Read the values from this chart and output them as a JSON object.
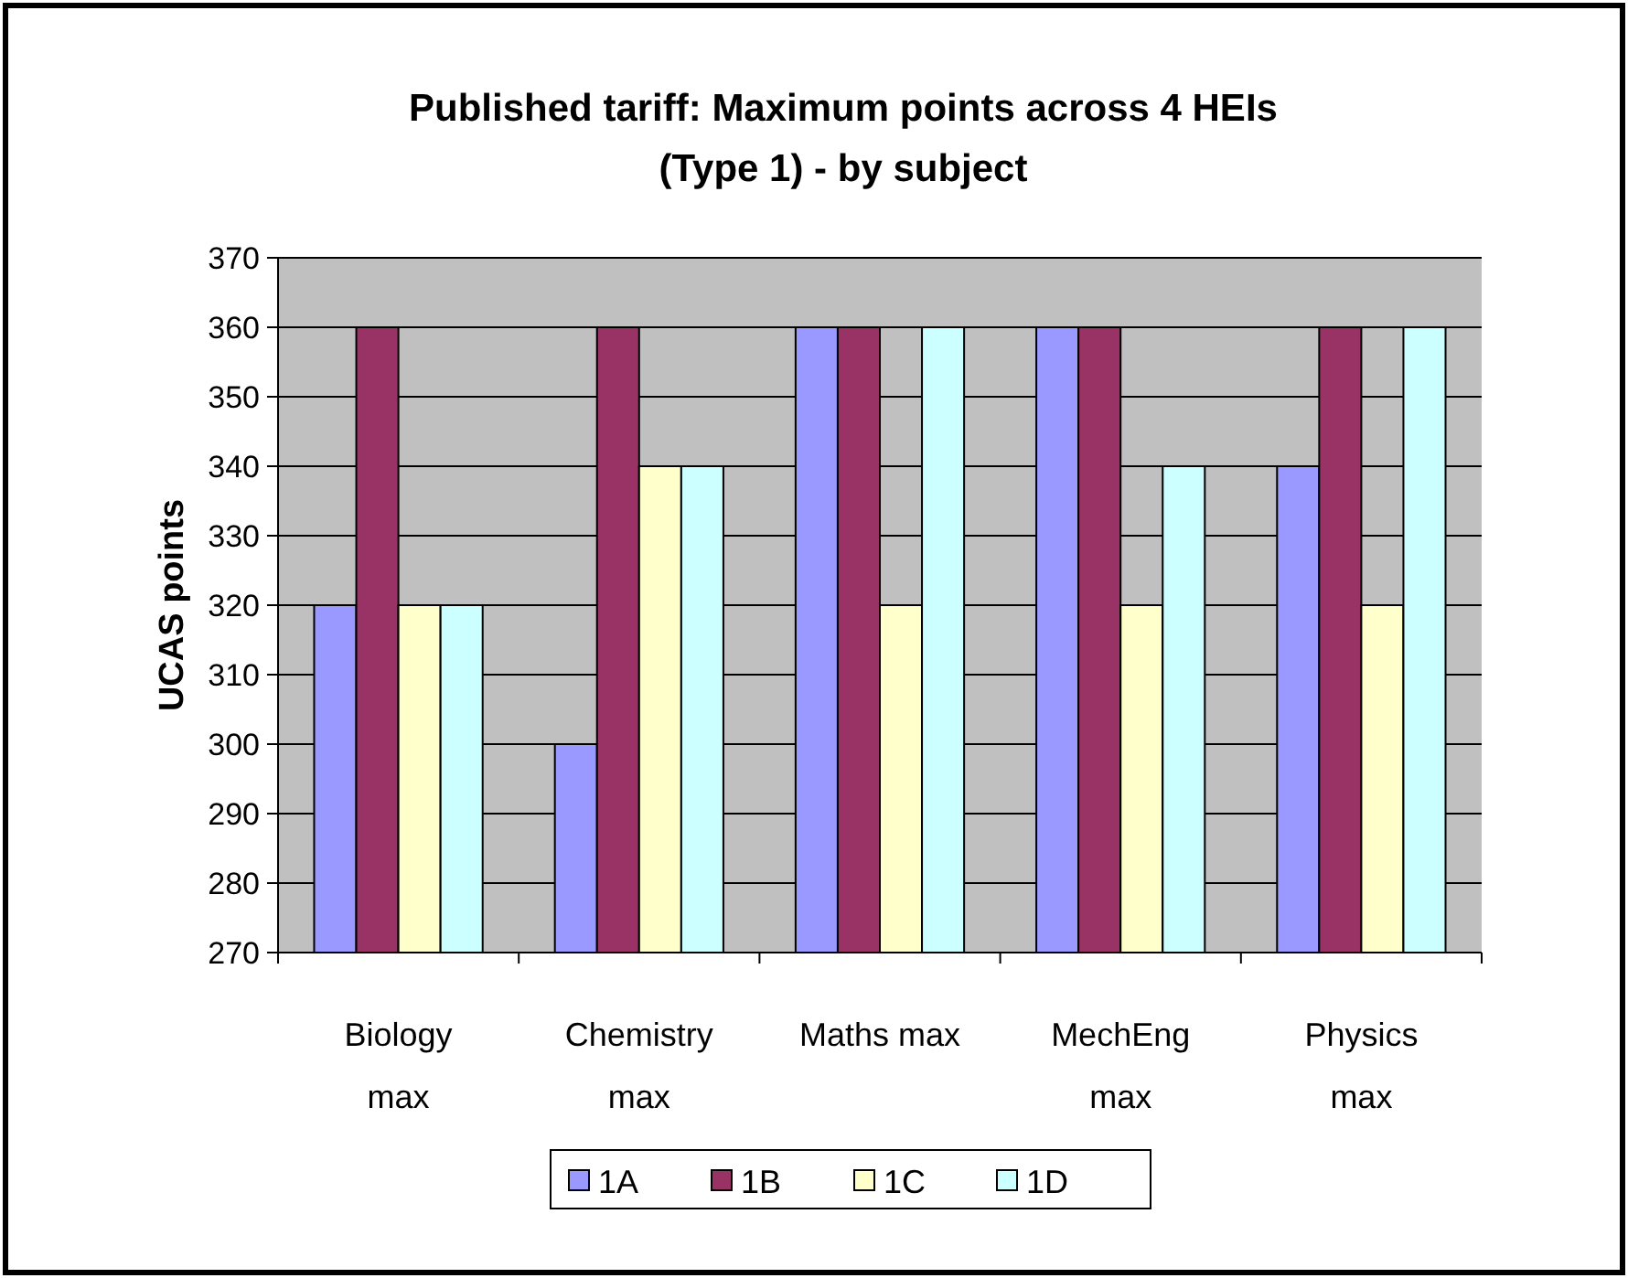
{
  "chart_data": {
    "type": "bar",
    "title": "Published tariff: Maximum points across 4 HEIs\n(Type 1) -  by subject",
    "ylabel": "UCAS points",
    "categories": [
      "Biology max",
      "Chemistry max",
      "Maths max",
      "MechEng max",
      "Physics max"
    ],
    "series": [
      {
        "name": "1A",
        "color": "#9999ff",
        "values": [
          320,
          300,
          360,
          360,
          340
        ]
      },
      {
        "name": "1B",
        "color": "#993366",
        "values": [
          360,
          360,
          360,
          360,
          360
        ]
      },
      {
        "name": "1C",
        "color": "#ffffcc",
        "values": [
          320,
          340,
          320,
          320,
          320
        ]
      },
      {
        "name": "1D",
        "color": "#ccffff",
        "values": [
          320,
          340,
          360,
          340,
          360
        ]
      }
    ],
    "ylim": [
      270,
      370
    ],
    "yticks": [
      270,
      280,
      290,
      300,
      310,
      320,
      330,
      340,
      350,
      360,
      370
    ],
    "grid": "y",
    "legend": "bottom"
  }
}
